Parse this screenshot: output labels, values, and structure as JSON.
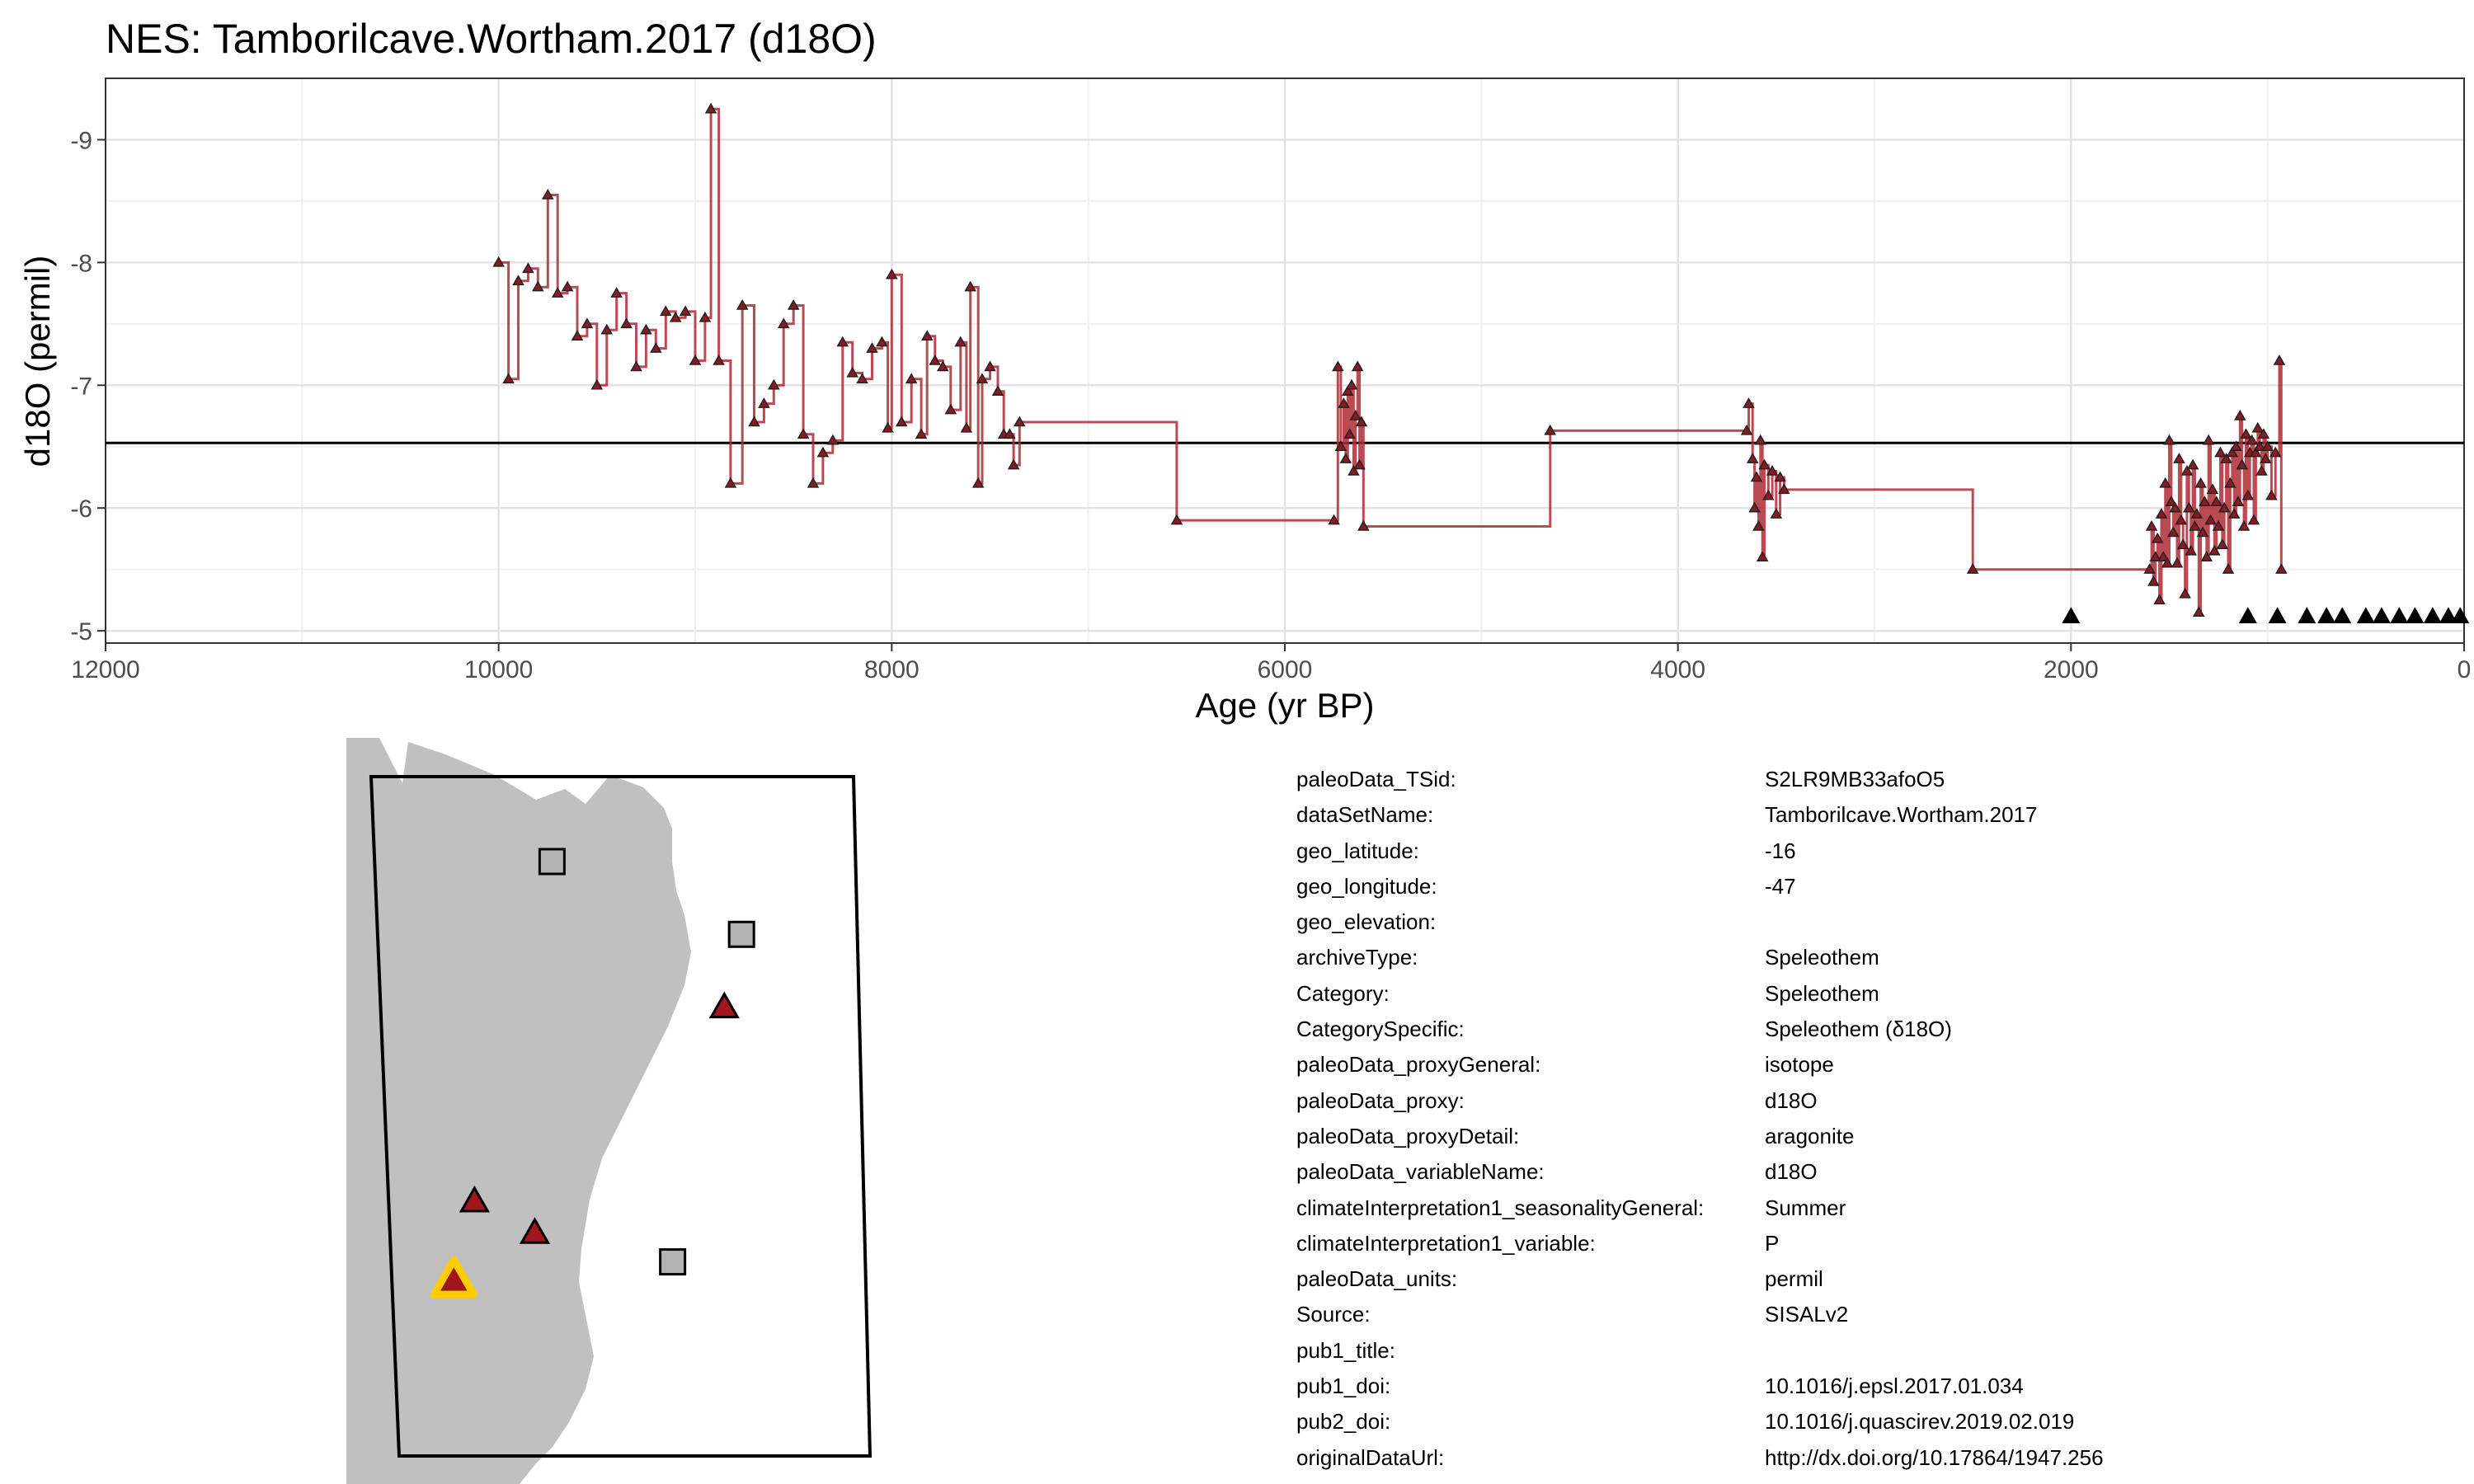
{
  "title": "NES: Tamborilcave.Wortham.2017 (d18O)",
  "chart_data": {
    "type": "line",
    "xlabel": "Age (yr BP)",
    "ylabel": "d18O (permil)",
    "xlim": [
      12000,
      0
    ],
    "ylim": [
      -4.9,
      -9.5
    ],
    "x_reversed": true,
    "y_reversed": true,
    "grid": true,
    "x_ticks": [
      12000,
      10000,
      8000,
      6000,
      4000,
      2000,
      0
    ],
    "x_tick_labels": [
      "12000",
      "10000",
      "8000",
      "6000",
      "4000",
      "2000",
      "0"
    ],
    "y_ticks": [
      -9,
      -8,
      -7,
      -6,
      -5
    ],
    "y_tick_labels": [
      "-9",
      "-8",
      "-7",
      "-6",
      "-5"
    ],
    "reference_line": -6.53,
    "line_color": "#b02a35",
    "series": [
      {
        "points": [
          [
            10000,
            -8.0
          ],
          [
            9950,
            -7.05
          ],
          [
            9900,
            -7.85
          ],
          [
            9850,
            -7.95
          ],
          [
            9800,
            -7.8
          ],
          [
            9750,
            -8.55
          ],
          [
            9700,
            -7.75
          ],
          [
            9650,
            -7.8
          ],
          [
            9600,
            -7.4
          ],
          [
            9550,
            -7.5
          ],
          [
            9500,
            -7.0
          ],
          [
            9450,
            -7.45
          ],
          [
            9400,
            -7.75
          ],
          [
            9350,
            -7.5
          ],
          [
            9300,
            -7.15
          ],
          [
            9250,
            -7.45
          ],
          [
            9200,
            -7.3
          ],
          [
            9150,
            -7.6
          ],
          [
            9100,
            -7.55
          ],
          [
            9050,
            -7.6
          ],
          [
            9000,
            -7.2
          ],
          [
            8950,
            -7.55
          ],
          [
            8920,
            -9.25
          ],
          [
            8880,
            -7.2
          ],
          [
            8820,
            -6.2
          ],
          [
            8760,
            -7.65
          ],
          [
            8700,
            -6.7
          ],
          [
            8650,
            -6.85
          ],
          [
            8600,
            -7.0
          ],
          [
            8550,
            -7.5
          ],
          [
            8500,
            -7.65
          ],
          [
            8450,
            -6.6
          ],
          [
            8400,
            -6.2
          ],
          [
            8350,
            -6.45
          ],
          [
            8300,
            -6.55
          ],
          [
            8250,
            -7.35
          ],
          [
            8200,
            -7.1
          ],
          [
            8150,
            -7.05
          ],
          [
            8100,
            -7.3
          ],
          [
            8050,
            -7.35
          ],
          [
            8020,
            -6.65
          ],
          [
            8000,
            -7.9
          ],
          [
            7950,
            -6.7
          ],
          [
            7900,
            -7.05
          ],
          [
            7850,
            -6.6
          ],
          [
            7820,
            -7.4
          ],
          [
            7780,
            -7.2
          ],
          [
            7740,
            -7.15
          ],
          [
            7700,
            -6.8
          ],
          [
            7650,
            -7.35
          ],
          [
            7620,
            -6.65
          ],
          [
            7600,
            -7.8
          ],
          [
            7560,
            -6.2
          ],
          [
            7540,
            -7.05
          ],
          [
            7500,
            -7.15
          ],
          [
            7460,
            -6.95
          ],
          [
            7430,
            -6.6
          ],
          [
            7400,
            -6.6
          ],
          [
            7380,
            -6.35
          ],
          [
            7350,
            -6.7
          ],
          [
            6550,
            -5.9
          ],
          [
            5750,
            -5.9
          ],
          [
            5730,
            -7.15
          ],
          [
            5715,
            -6.5
          ],
          [
            5700,
            -6.85
          ],
          [
            5690,
            -6.4
          ],
          [
            5680,
            -6.95
          ],
          [
            5670,
            -6.6
          ],
          [
            5660,
            -7.0
          ],
          [
            5650,
            -6.3
          ],
          [
            5640,
            -6.75
          ],
          [
            5630,
            -7.15
          ],
          [
            5620,
            -6.35
          ],
          [
            5610,
            -6.7
          ],
          [
            5600,
            -5.85
          ],
          [
            4650,
            -6.63
          ],
          [
            3650,
            -6.63
          ],
          [
            3640,
            -6.85
          ],
          [
            3620,
            -6.4
          ],
          [
            3610,
            -6.0
          ],
          [
            3600,
            -6.25
          ],
          [
            3590,
            -5.85
          ],
          [
            3580,
            -6.55
          ],
          [
            3570,
            -5.6
          ],
          [
            3560,
            -6.35
          ],
          [
            3540,
            -6.1
          ],
          [
            3520,
            -6.3
          ],
          [
            3500,
            -5.95
          ],
          [
            3480,
            -6.25
          ],
          [
            3460,
            -6.15
          ],
          [
            2500,
            -5.5
          ],
          [
            1600,
            -5.5
          ],
          [
            1590,
            -5.85
          ],
          [
            1580,
            -5.4
          ],
          [
            1570,
            -5.6
          ],
          [
            1560,
            -5.75
          ],
          [
            1550,
            -5.25
          ],
          [
            1540,
            -5.95
          ],
          [
            1530,
            -5.6
          ],
          [
            1520,
            -6.2
          ],
          [
            1510,
            -5.55
          ],
          [
            1500,
            -6.55
          ],
          [
            1490,
            -6.05
          ],
          [
            1480,
            -5.8
          ],
          [
            1470,
            -6.0
          ],
          [
            1460,
            -5.55
          ],
          [
            1450,
            -6.4
          ],
          [
            1440,
            -5.9
          ],
          [
            1430,
            -5.7
          ],
          [
            1420,
            -5.3
          ],
          [
            1410,
            -6.3
          ],
          [
            1400,
            -6.0
          ],
          [
            1390,
            -5.65
          ],
          [
            1380,
            -6.35
          ],
          [
            1370,
            -5.85
          ],
          [
            1360,
            -5.95
          ],
          [
            1350,
            -5.15
          ],
          [
            1340,
            -6.2
          ],
          [
            1330,
            -5.8
          ],
          [
            1320,
            -6.05
          ],
          [
            1310,
            -5.6
          ],
          [
            1300,
            -6.55
          ],
          [
            1290,
            -5.9
          ],
          [
            1280,
            -6.15
          ],
          [
            1270,
            -5.65
          ],
          [
            1260,
            -6.05
          ],
          [
            1250,
            -5.85
          ],
          [
            1240,
            -6.45
          ],
          [
            1230,
            -5.7
          ],
          [
            1220,
            -6.0
          ],
          [
            1210,
            -6.4
          ],
          [
            1200,
            -5.5
          ],
          [
            1190,
            -6.2
          ],
          [
            1180,
            -6.45
          ],
          [
            1170,
            -5.95
          ],
          [
            1160,
            -6.5
          ],
          [
            1150,
            -6.05
          ],
          [
            1140,
            -6.75
          ],
          [
            1130,
            -6.35
          ],
          [
            1120,
            -5.85
          ],
          [
            1110,
            -6.6
          ],
          [
            1100,
            -6.1
          ],
          [
            1090,
            -6.45
          ],
          [
            1080,
            -6.55
          ],
          [
            1070,
            -5.9
          ],
          [
            1060,
            -6.45
          ],
          [
            1050,
            -6.65
          ],
          [
            1040,
            -6.5
          ],
          [
            1030,
            -6.3
          ],
          [
            1020,
            -6.6
          ],
          [
            1010,
            -6.4
          ],
          [
            1000,
            -6.5
          ],
          [
            980,
            -6.1
          ],
          [
            960,
            -6.45
          ],
          [
            940,
            -7.2
          ],
          [
            930,
            -5.5
          ]
        ]
      }
    ],
    "other_records_marker_x": [
      2000,
      1100,
      950,
      800,
      700,
      620,
      500,
      420,
      330,
      250,
      160,
      80,
      20
    ],
    "other_records_marker_y": -5.12
  },
  "map": {
    "land_color": "#c0c0c0",
    "sites": [
      {
        "type": "square",
        "lon": -51.5,
        "lat": -0.5
      },
      {
        "type": "square",
        "lon": -40.5,
        "lat": -3.5
      },
      {
        "type": "triangle",
        "lon": -41.5,
        "lat": -6.5
      },
      {
        "type": "triangle",
        "lon": -56,
        "lat": -14.5
      },
      {
        "type": "triangle",
        "lon": -52.5,
        "lat": -15.8
      },
      {
        "type": "square",
        "lon": -44.5,
        "lat": -17
      },
      {
        "type": "highlight",
        "lon": -57.2,
        "lat": -17.8
      }
    ]
  },
  "metadata": [
    {
      "key": "paleoData_TSid:",
      "value": "S2LR9MB33afoO5"
    },
    {
      "key": "dataSetName:",
      "value": "Tamborilcave.Wortham.2017"
    },
    {
      "key": "geo_latitude:",
      "value": "-16"
    },
    {
      "key": "geo_longitude:",
      "value": "-47"
    },
    {
      "key": "geo_elevation:",
      "value": ""
    },
    {
      "key": "archiveType:",
      "value": "Speleothem"
    },
    {
      "key": "Category:",
      "value": "Speleothem"
    },
    {
      "key": "CategorySpecific:",
      "value": "Speleothem (δ18O)"
    },
    {
      "key": "paleoData_proxyGeneral:",
      "value": "isotope"
    },
    {
      "key": "paleoData_proxy:",
      "value": "d18O"
    },
    {
      "key": "paleoData_proxyDetail:",
      "value": "aragonite"
    },
    {
      "key": "paleoData_variableName:",
      "value": "d18O"
    },
    {
      "key": "climateInterpretation1_seasonalityGeneral:",
      "value": "Summer"
    },
    {
      "key": "climateInterpretation1_variable:",
      "value": "P"
    },
    {
      "key": "paleoData_units:",
      "value": "permil"
    },
    {
      "key": "Source:",
      "value": "SISALv2"
    },
    {
      "key": "pub1_title:",
      "value": ""
    },
    {
      "key": "pub1_doi:",
      "value": "10.1016/j.epsl.2017.01.034"
    },
    {
      "key": "pub2_doi:",
      "value": "10.1016/j.quascirev.2019.02.019"
    },
    {
      "key": "originalDataUrl:",
      "value": "http://dx.doi.org/10.17864/1947.256"
    }
  ]
}
